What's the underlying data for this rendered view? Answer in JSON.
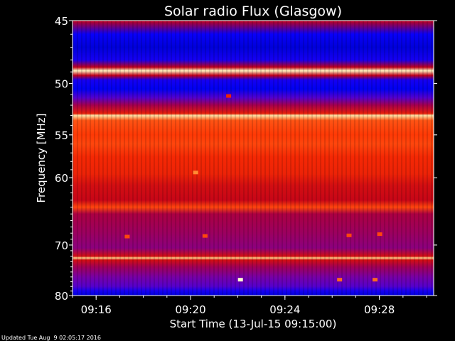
{
  "chart_data": {
    "type": "heatmap",
    "title": "Solar radio Flux (Glasgow)",
    "xlabel": "Start Time (13-Jul-15 09:15:00)",
    "ylabel": "Frequency [MHz]",
    "x_ticks": [
      "09:16",
      "09:20",
      "09:24",
      "09:28"
    ],
    "x_tick_minutes": [
      1,
      5,
      9,
      13
    ],
    "xlim_minutes": [
      0,
      15.3
    ],
    "y_ticks": [
      "45",
      "50",
      "55",
      "60",
      "70",
      "80"
    ],
    "y_tick_values": [
      45,
      50,
      55,
      60,
      70,
      80
    ],
    "ylim": [
      45,
      80
    ],
    "y_scale": "reciprocal",
    "colormap": [
      "#000080",
      "#0000ff",
      "#6a00c0",
      "#c0001a",
      "#ff3000",
      "#ffa040",
      "#ffffd0"
    ],
    "bands": [
      {
        "f": 45.0,
        "v": 0.5
      },
      {
        "f": 46.0,
        "v": 0.18
      },
      {
        "f": 47.0,
        "v": 0.12
      },
      {
        "f": 48.0,
        "v": 0.2
      },
      {
        "f": 48.6,
        "v": 0.5
      },
      {
        "f": 48.9,
        "v": 0.98
      },
      {
        "f": 49.3,
        "v": 0.5
      },
      {
        "f": 49.7,
        "v": 0.2
      },
      {
        "f": 50.5,
        "v": 0.15
      },
      {
        "f": 51.3,
        "v": 0.3
      },
      {
        "f": 52.0,
        "v": 0.45
      },
      {
        "f": 52.8,
        "v": 0.6
      },
      {
        "f": 53.0,
        "v": 0.95
      },
      {
        "f": 53.5,
        "v": 0.72
      },
      {
        "f": 55.0,
        "v": 0.68
      },
      {
        "f": 56.0,
        "v": 0.7
      },
      {
        "f": 57.5,
        "v": 0.64
      },
      {
        "f": 59.5,
        "v": 0.62
      },
      {
        "f": 61.0,
        "v": 0.55
      },
      {
        "f": 63.0,
        "v": 0.52
      },
      {
        "f": 64.0,
        "v": 0.7
      },
      {
        "f": 65.0,
        "v": 0.46
      },
      {
        "f": 68.0,
        "v": 0.43
      },
      {
        "f": 70.5,
        "v": 0.4
      },
      {
        "f": 72.0,
        "v": 0.55
      },
      {
        "f": 72.3,
        "v": 0.92
      },
      {
        "f": 72.7,
        "v": 0.55
      },
      {
        "f": 74.0,
        "v": 0.44
      },
      {
        "f": 76.0,
        "v": 0.36
      },
      {
        "f": 78.0,
        "v": 0.3
      },
      {
        "f": 79.0,
        "v": 0.2
      },
      {
        "f": 80.0,
        "v": 0.12
      }
    ],
    "bursts": [
      {
        "t": 5.2,
        "f": 59.3,
        "v": 0.8
      },
      {
        "t": 6.6,
        "f": 51.1,
        "v": 0.62
      },
      {
        "t": 7.1,
        "f": 76.5,
        "v": 1.0
      },
      {
        "t": 2.3,
        "f": 68.5,
        "v": 0.7
      },
      {
        "t": 5.6,
        "f": 68.4,
        "v": 0.7
      },
      {
        "t": 11.7,
        "f": 68.3,
        "v": 0.7
      },
      {
        "t": 13.0,
        "f": 68.1,
        "v": 0.7
      },
      {
        "t": 11.3,
        "f": 76.5,
        "v": 0.75
      },
      {
        "t": 12.8,
        "f": 76.5,
        "v": 0.75
      }
    ]
  },
  "footer": {
    "updated_text": "Updated Tue Aug  9 02:05:17 2016"
  }
}
